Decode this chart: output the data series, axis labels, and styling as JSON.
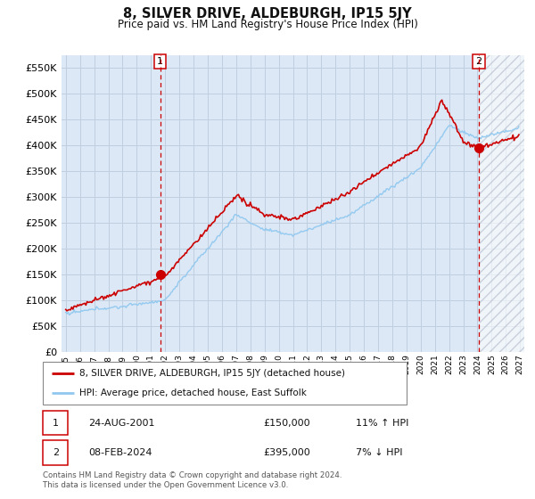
{
  "title": "8, SILVER DRIVE, ALDEBURGH, IP15 5JY",
  "subtitle": "Price paid vs. HM Land Registry's House Price Index (HPI)",
  "ylim": [
    0,
    575000
  ],
  "yticks": [
    0,
    50000,
    100000,
    150000,
    200000,
    250000,
    300000,
    350000,
    400000,
    450000,
    500000,
    550000
  ],
  "sale1_year": 2001.65,
  "sale1_price": 150000,
  "sale2_year": 2024.1,
  "sale2_price": 395000,
  "sale1_text": "24-AUG-2001",
  "sale1_amount": "£150,000",
  "sale1_hpi": "11% ↑ HPI",
  "sale2_text": "08-FEB-2024",
  "sale2_amount": "£395,000",
  "sale2_hpi": "7% ↓ HPI",
  "hpi_line_color": "#90c8f0",
  "price_line_color": "#cc0000",
  "background_color": "#ffffff",
  "chart_bg_color": "#dce8f5",
  "grid_color": "#c0cfe0",
  "legend_label_price": "8, SILVER DRIVE, ALDEBURGH, IP15 5JY (detached house)",
  "legend_label_hpi": "HPI: Average price, detached house, East Suffolk",
  "footer": "Contains HM Land Registry data © Crown copyright and database right 2024.\nThis data is licensed under the Open Government Licence v3.0.",
  "xmin": 1994.7,
  "xmax": 2027.3,
  "future_start": 2024.15
}
